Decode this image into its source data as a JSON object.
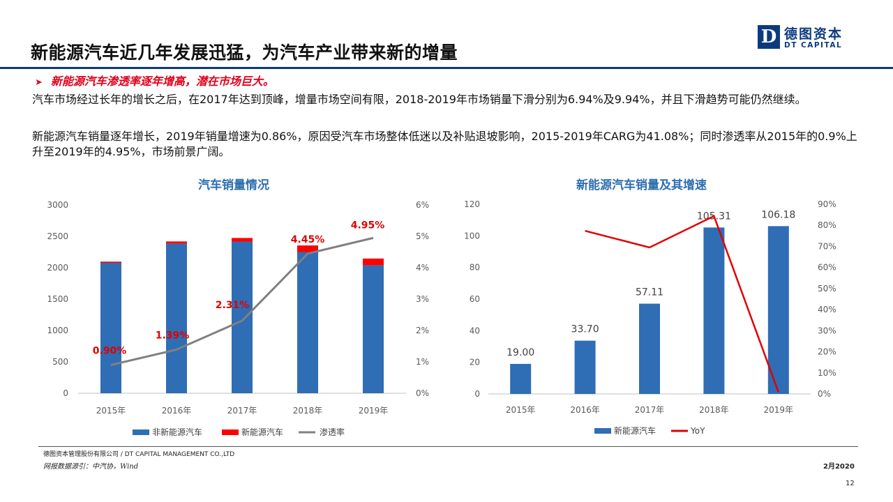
{
  "header": {
    "title": "新能源汽车近几年发展迅猛，为汽车产业带来新的增量",
    "logo": {
      "mark": "D",
      "cn": "德图资本",
      "en": "DT CAPITAL"
    }
  },
  "body": {
    "bullet": "新能源汽车渗透率逐年增高，潜在市场巨大。",
    "paragraph1": "汽车市场经过长年的增长之后，在2017年达到顶峰，增量市场空间有限，2018-2019年市场销量下滑分别为6.94%及9.94%，并且下滑趋势可能仍然继续。",
    "paragraph2": "新能源汽车销量逐年增长，2019年销量增速为0.86%，原因受汽车市场整体低迷以及补贴退坡影响，2015-2019年CARG为41.08%；同时渗透率从2015年的0.9%上升至2019年的4.95%，市场前景广阔。"
  },
  "chart_data": [
    {
      "type": "bar",
      "title": "汽车销量情况",
      "stacked": true,
      "categories": [
        "2015年",
        "2016年",
        "2017年",
        "2018年",
        "2019年"
      ],
      "series": [
        {
          "name": "非新能源汽车",
          "axis": "left",
          "color": "#2f6db5",
          "values": [
            2078,
            2385,
            2417,
            2250,
            2040
          ]
        },
        {
          "name": "新能源汽车",
          "axis": "left",
          "color": "#ff0000",
          "values": [
            19.0,
            33.7,
            57.11,
            105.31,
            106.18
          ]
        },
        {
          "name": "渗透率",
          "type": "line",
          "axis": "right",
          "color": "#808080",
          "values": [
            0.9,
            1.39,
            2.31,
            4.45,
            4.95
          ]
        }
      ],
      "data_labels": [
        "0.90%",
        "1.39%",
        "2.31%",
        "4.45%",
        "4.95%"
      ],
      "y_left": {
        "min": 0,
        "max": 3000,
        "ticks": [
          "0",
          "500",
          "1000",
          "1500",
          "2000",
          "2500",
          "3000"
        ]
      },
      "y_right": {
        "min": 0,
        "max": 6,
        "ticks": [
          "0%",
          "1%",
          "2%",
          "3%",
          "4%",
          "5%",
          "6%"
        ]
      },
      "legend": "bottom",
      "grid": false
    },
    {
      "type": "bar",
      "title": "新能源汽车销量及其增速",
      "categories": [
        "2015年",
        "2016年",
        "2017年",
        "2018年",
        "2019年"
      ],
      "series": [
        {
          "name": "新能源汽车",
          "axis": "left",
          "color": "#2f6db5",
          "values": [
            19.0,
            33.7,
            57.11,
            105.31,
            106.18
          ]
        },
        {
          "name": "YoY",
          "type": "line",
          "axis": "right",
          "color": "#e00000",
          "values": [
            null,
            77.4,
            69.5,
            84.4,
            0.86
          ]
        }
      ],
      "data_labels": [
        "19.00",
        "33.70",
        "57.11",
        "105.31",
        "106.18"
      ],
      "y_left": {
        "min": 0,
        "max": 120,
        "ticks": [
          "0",
          "20",
          "40",
          "60",
          "80",
          "100",
          "120"
        ]
      },
      "y_right": {
        "min": 0,
        "max": 90,
        "ticks": [
          "0%",
          "10%",
          "20%",
          "30%",
          "40%",
          "50%",
          "60%",
          "70%",
          "80%",
          "90%"
        ]
      },
      "legend": "bottom",
      "grid": false
    }
  ],
  "footer": {
    "company": "德图资本管理股份有限公司 / DT CAPITAL MANAGEMENT CO.,LTD",
    "source": "网报数据源引：中汽协，Wind",
    "date": "2月2020",
    "page": "12"
  }
}
